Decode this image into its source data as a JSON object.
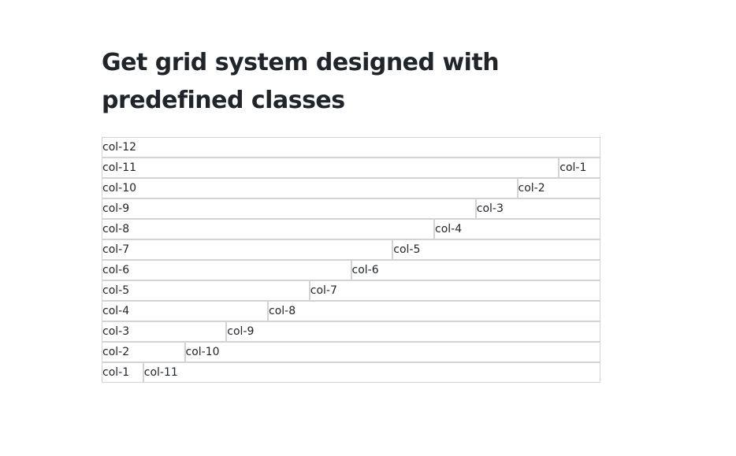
{
  "heading": {
    "title": "Get grid system designed with predefined classes"
  },
  "grid": {
    "rows": [
      [
        {
          "label": "col-12",
          "span": 12
        }
      ],
      [
        {
          "label": "col-11",
          "span": 11
        },
        {
          "label": "col-1",
          "span": 1
        }
      ],
      [
        {
          "label": "col-10",
          "span": 10
        },
        {
          "label": "col-2",
          "span": 2
        }
      ],
      [
        {
          "label": "col-9",
          "span": 9
        },
        {
          "label": "col-3",
          "span": 3
        }
      ],
      [
        {
          "label": "col-8",
          "span": 8
        },
        {
          "label": "col-4",
          "span": 4
        }
      ],
      [
        {
          "label": "col-7",
          "span": 7
        },
        {
          "label": "col-5",
          "span": 5
        }
      ],
      [
        {
          "label": "col-6",
          "span": 6
        },
        {
          "label": "col-6",
          "span": 6
        }
      ],
      [
        {
          "label": "col-5",
          "span": 5
        },
        {
          "label": "col-7",
          "span": 7
        }
      ],
      [
        {
          "label": "col-4",
          "span": 4
        },
        {
          "label": "col-8",
          "span": 8
        }
      ],
      [
        {
          "label": "col-3",
          "span": 3
        },
        {
          "label": "col-9",
          "span": 9
        }
      ],
      [
        {
          "label": "col-2",
          "span": 2
        },
        {
          "label": "col-10",
          "span": 10
        }
      ],
      [
        {
          "label": "col-1",
          "span": 1
        },
        {
          "label": "col-11",
          "span": 11
        }
      ]
    ]
  },
  "colors": {
    "cell_border": "#d3d3d3",
    "text": "#212529",
    "background": "#ffffff"
  }
}
